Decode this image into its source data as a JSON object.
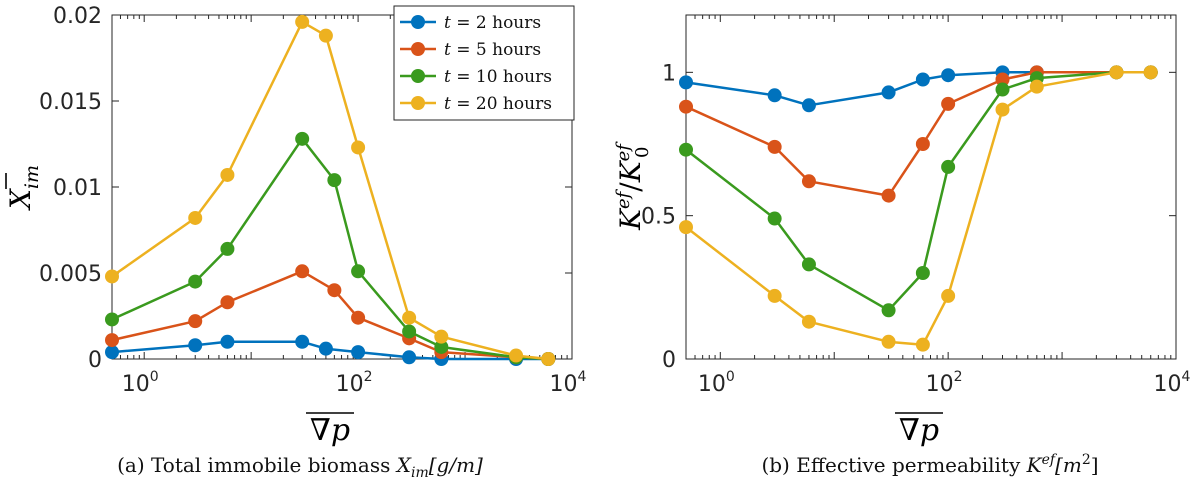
{
  "chart_data": [
    {
      "type": "line",
      "xscale": "log",
      "xlim": [
        0.5,
        10000
      ],
      "ylim": [
        0,
        0.02
      ],
      "xticks": [
        1,
        100,
        10000
      ],
      "xtick_labels": [
        {
          "base": "10",
          "exp": "0"
        },
        {
          "base": "10",
          "exp": "2"
        },
        {
          "base": "10",
          "exp": "4"
        }
      ],
      "yticks": [
        0,
        0.005,
        0.01,
        0.015,
        0.02
      ],
      "ytick_labels": [
        "0",
        "0.005",
        "0.01",
        "0.015",
        "0.02"
      ],
      "ylabel": {
        "base": "X",
        "overbar": true,
        "sub": "im"
      },
      "xlabel": {
        "text": "∇p",
        "overbar": true
      },
      "caption": {
        "prefix": "(a) Total immobile biomass ",
        "sym": "X",
        "sub": "im",
        "units": "[g/m]"
      },
      "legend": {
        "placement": "top-right",
        "entries": [
          {
            "var": "t",
            "eq": " = 2 hours"
          },
          {
            "var": "t",
            "eq": " = 5 hours"
          },
          {
            "var": "t",
            "eq": " = 10 hours"
          },
          {
            "var": "t",
            "eq": " = 20 hours"
          }
        ]
      },
      "series": [
        {
          "color": "#0072BD",
          "x": [
            0.5,
            3,
            6,
            30,
            50,
            100,
            300,
            600,
            3000,
            6000
          ],
          "y": [
            0.0004,
            0.0008,
            0.001,
            0.001,
            0.0006,
            0.0004,
            0.0001,
            0.0,
            0.0,
            0.0
          ]
        },
        {
          "color": "#D95319",
          "x": [
            0.5,
            3,
            6,
            30,
            60,
            100,
            300,
            600,
            3000,
            6000
          ],
          "y": [
            0.0011,
            0.0022,
            0.0033,
            0.0051,
            0.004,
            0.0024,
            0.0012,
            0.0004,
            0.0001,
            0.0
          ]
        },
        {
          "color": "#3A9A1E",
          "x": [
            0.5,
            3,
            6,
            30,
            60,
            100,
            300,
            600,
            3000,
            6000
          ],
          "y": [
            0.0023,
            0.0045,
            0.0064,
            0.0128,
            0.0104,
            0.0051,
            0.0016,
            0.0007,
            0.0001,
            0.0
          ]
        },
        {
          "color": "#EDB120",
          "x": [
            0.5,
            3,
            6,
            30,
            50,
            100,
            300,
            600,
            3000,
            6000
          ],
          "y": [
            0.0048,
            0.0082,
            0.0107,
            0.0196,
            0.0188,
            0.0123,
            0.0024,
            0.0013,
            0.0002,
            0.0
          ]
        }
      ]
    },
    {
      "type": "line",
      "xscale": "log",
      "xlim": [
        0.5,
        10000
      ],
      "ylim": [
        0,
        1.2
      ],
      "xticks": [
        1,
        100,
        10000
      ],
      "xtick_labels": [
        {
          "base": "10",
          "exp": "0"
        },
        {
          "base": "10",
          "exp": "2"
        },
        {
          "base": "10",
          "exp": "4"
        }
      ],
      "yticks": [
        0,
        0.5,
        1
      ],
      "ytick_labels": [
        "0",
        "0.5",
        "1"
      ],
      "ylabel": {
        "num": "K",
        "num_sup": "ef",
        "den": "K",
        "den_sub": "0",
        "den_sup": "ef"
      },
      "xlabel": {
        "text": "∇p",
        "overbar": true
      },
      "caption": {
        "prefix": "(b) Effective permeability ",
        "sym": "K",
        "sup": "ef",
        "units": "[m",
        "units_sup": "2",
        "units_close": "]"
      },
      "series": [
        {
          "color": "#0072BD",
          "x": [
            0.5,
            3,
            6,
            30,
            60,
            100,
            300,
            600,
            3000,
            6000
          ],
          "y": [
            0.965,
            0.92,
            0.885,
            0.93,
            0.975,
            0.99,
            1.0,
            1.0,
            1.0,
            1.0
          ]
        },
        {
          "color": "#D95319",
          "x": [
            0.5,
            3,
            6,
            30,
            60,
            100,
            300,
            600,
            3000,
            6000
          ],
          "y": [
            0.88,
            0.74,
            0.62,
            0.57,
            0.75,
            0.89,
            0.975,
            1.0,
            1.0,
            1.0
          ]
        },
        {
          "color": "#3A9A1E",
          "x": [
            0.5,
            3,
            6,
            30,
            60,
            100,
            300,
            600,
            3000,
            6000
          ],
          "y": [
            0.73,
            0.49,
            0.33,
            0.17,
            0.3,
            0.67,
            0.94,
            0.98,
            1.0,
            1.0
          ]
        },
        {
          "color": "#EDB120",
          "x": [
            0.5,
            3,
            6,
            30,
            60,
            100,
            300,
            600,
            3000,
            6000
          ],
          "y": [
            0.46,
            0.22,
            0.13,
            0.06,
            0.05,
            0.22,
            0.87,
            0.95,
            1.0,
            1.0
          ]
        }
      ]
    }
  ]
}
